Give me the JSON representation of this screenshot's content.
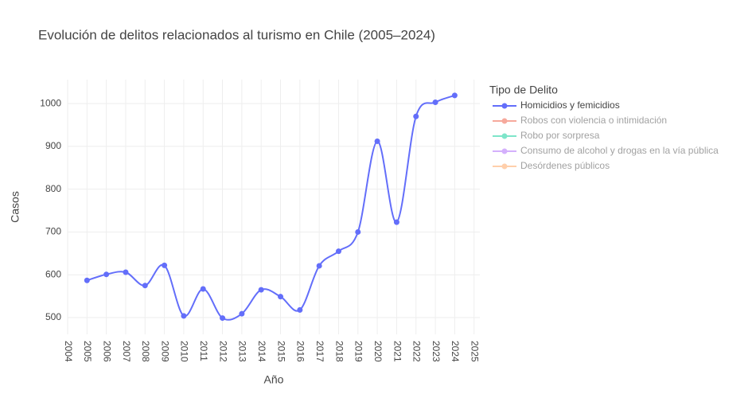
{
  "chart_data": {
    "type": "line",
    "title": "Evolución de delitos relacionados al turismo en Chile (2005–2024)",
    "x_label": "Año",
    "y_label": "Casos",
    "legend_title": "Tipo de Delito",
    "x": [
      2005,
      2006,
      2007,
      2008,
      2009,
      2010,
      2011,
      2012,
      2013,
      2014,
      2015,
      2016,
      2017,
      2018,
      2019,
      2020,
      2021,
      2022,
      2023,
      2024
    ],
    "series": [
      {
        "name": "Homicidios y femicidios",
        "color": "#636efa",
        "visible": true,
        "values": [
          587,
          601,
          606,
          575,
          622,
          504,
          567,
          499,
          509,
          565,
          549,
          518,
          621,
          655,
          700,
          912,
          723,
          970,
          1003,
          1019
        ]
      },
      {
        "name": "Robos con violencia o intimidación",
        "color": "#ef553b",
        "visible": "legendonly"
      },
      {
        "name": "Robo por sorpresa",
        "color": "#00cc96",
        "visible": "legendonly"
      },
      {
        "name": "Consumo de alcohol y drogas en la vía pública",
        "color": "#ab63fa",
        "visible": "legendonly"
      },
      {
        "name": "Desórdenes públicos",
        "color": "#ffa15a",
        "visible": "legendonly"
      }
    ],
    "xlim": [
      2004,
      2025.3
    ],
    "xticks": [
      2004,
      2005,
      2006,
      2007,
      2008,
      2009,
      2010,
      2011,
      2012,
      2013,
      2014,
      2015,
      2016,
      2017,
      2018,
      2019,
      2020,
      2021,
      2022,
      2023,
      2024,
      2025
    ],
    "ylim": [
      461,
      1056
    ],
    "yticks": [
      500,
      600,
      700,
      800,
      900,
      1000
    ],
    "grid": true,
    "spline": true,
    "legend_position": "right"
  }
}
